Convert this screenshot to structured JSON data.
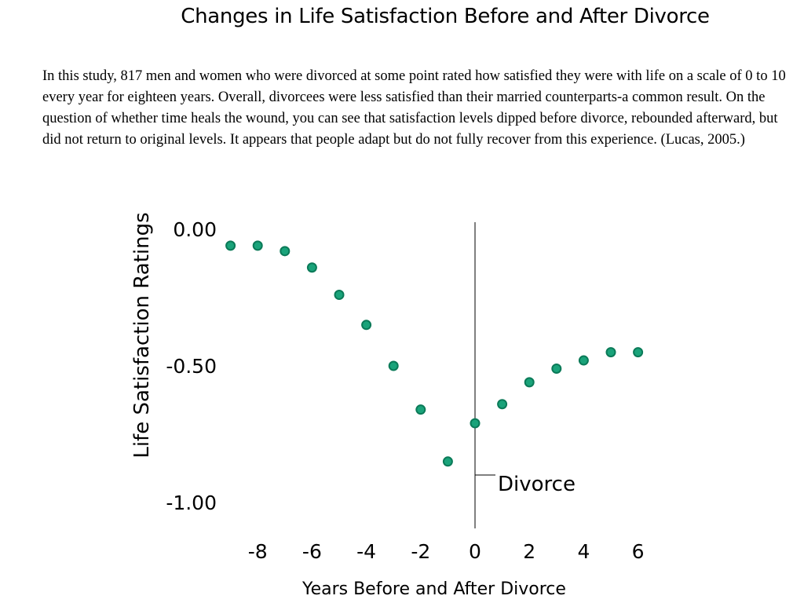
{
  "page": {
    "title": "Changes in Life Satisfaction Before and After Divorce",
    "description": "In this study, 817 men and women who were divorced at some point rated how satisfied they were with life on a scale of  0 to 10 every year for eighteen years. Overall, divorcees were less satisfied than their married counterparts-a common result. On the question of  whether time heals the wound, you can see that satisfaction levels dipped before divorce, rebounded afterward, but did not return to original levels. It appears that people adapt but do not fully recover from this experience. (Lucas, 2005.)"
  },
  "chart_data": {
    "type": "scatter",
    "title": "",
    "xlabel": "Years Before and After Divorce",
    "ylabel": "Life Satisfaction Ratings",
    "xlim": [
      -9,
      7
    ],
    "ylim": [
      -1.0,
      0.0
    ],
    "x_ticks": [
      -8,
      -6,
      -4,
      -2,
      0,
      2,
      4,
      6
    ],
    "x_tick_labels": [
      "-8",
      "-6",
      "-4",
      "-2",
      "0",
      "2",
      "4",
      "6"
    ],
    "y_ticks": [
      0.0,
      -0.5,
      -1.0
    ],
    "y_tick_labels": [
      "0.00",
      "-0.50",
      "-1.00"
    ],
    "grid": false,
    "points": [
      {
        "x": -9,
        "y": -0.06
      },
      {
        "x": -8,
        "y": -0.06
      },
      {
        "x": -7,
        "y": -0.08
      },
      {
        "x": -6,
        "y": -0.14
      },
      {
        "x": -5,
        "y": -0.24
      },
      {
        "x": -4,
        "y": -0.35
      },
      {
        "x": -3,
        "y": -0.5
      },
      {
        "x": -2,
        "y": -0.66
      },
      {
        "x": -1,
        "y": -0.85
      },
      {
        "x": 0,
        "y": -0.71
      },
      {
        "x": 1,
        "y": -0.64
      },
      {
        "x": 2,
        "y": -0.56
      },
      {
        "x": 3,
        "y": -0.51
      },
      {
        "x": 4,
        "y": -0.48
      },
      {
        "x": 5,
        "y": -0.45
      },
      {
        "x": 6,
        "y": -0.45
      }
    ],
    "point_color": "#1aa37a",
    "point_stroke": "#0b7a58",
    "reference_line": {
      "x": 0,
      "label": "Divorce"
    }
  }
}
